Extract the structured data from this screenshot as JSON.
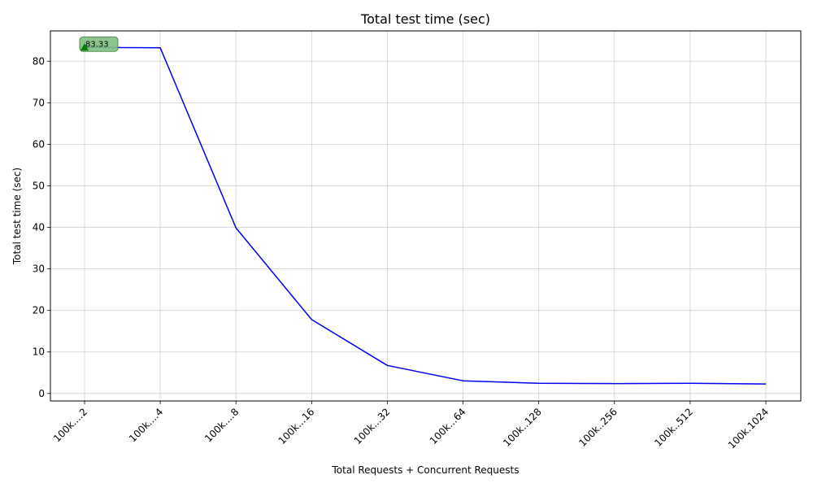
{
  "chart_data": {
    "type": "line",
    "title": "Total test time (sec)",
    "xlabel": "Total Requests + Concurrent Requests",
    "ylabel": "Total test time (sec)",
    "categories": [
      "100k....2",
      "100k....4",
      "100k....8",
      "100k...16",
      "100k...32",
      "100k...64",
      "100k..128",
      "100k..256",
      "100k..512",
      "100k.1024"
    ],
    "series": [
      {
        "values": [
          83.33,
          83.25,
          39.9,
          17.8,
          6.75,
          3.05,
          2.45,
          2.4,
          2.45,
          2.3
        ],
        "color": "#0000ee"
      }
    ],
    "ylim": [
      -1.8,
      87.3
    ],
    "yticks": [
      0,
      10,
      20,
      30,
      40,
      50,
      60,
      70,
      80
    ],
    "grid": true,
    "annotation": {
      "label": "83.33",
      "category": "100k....2",
      "value": 83.33,
      "marker": "triangle-up",
      "marker_color": "#008000",
      "box_color": "#7fbf7f"
    }
  }
}
